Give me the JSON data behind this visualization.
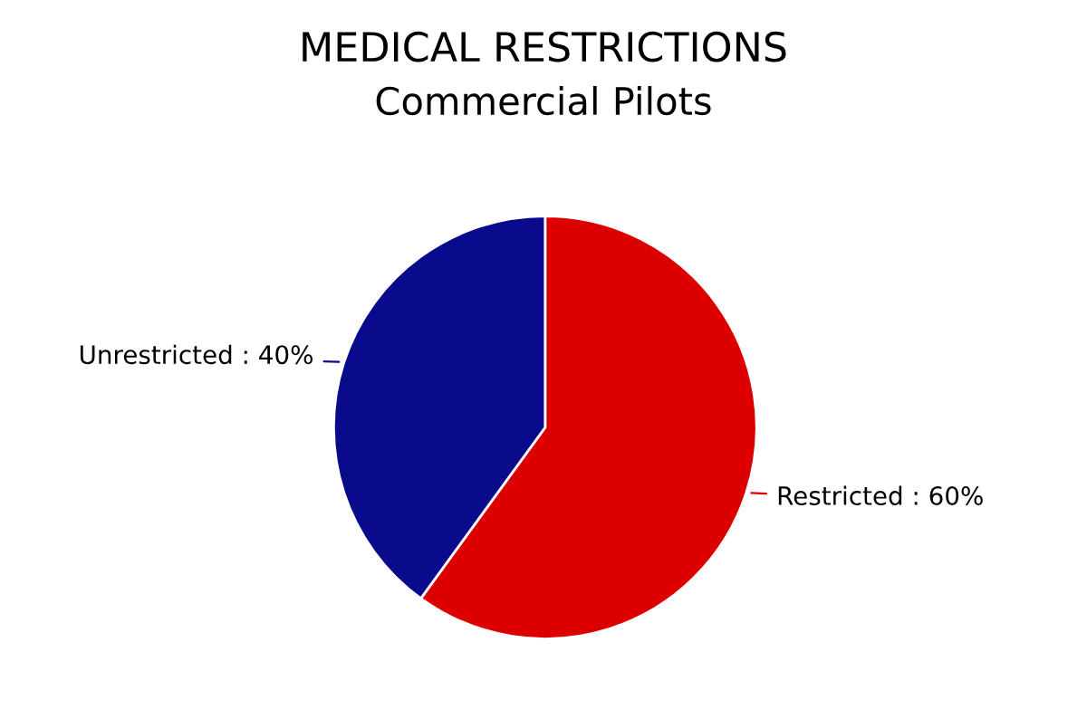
{
  "chart_data": {
    "type": "pie",
    "title": "MEDICAL RESTRICTIONS",
    "subtitle": "Commercial Pilots",
    "categories": [
      "Restricted",
      "Unrestricted"
    ],
    "values": [
      60,
      40
    ],
    "colors": [
      "#dd0000",
      "#0a0a8c"
    ],
    "value_labels": [
      "60%",
      "40%"
    ],
    "legend": false
  }
}
